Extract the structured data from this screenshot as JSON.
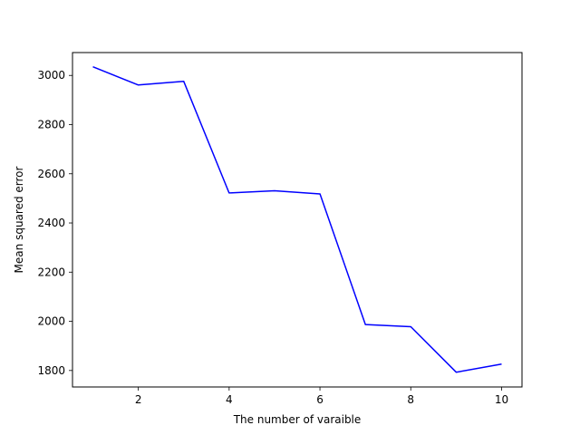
{
  "chart_data": {
    "type": "line",
    "title": "",
    "xlabel": "The number of varaible",
    "ylabel": "Mean squared error",
    "xlim": [
      0.55,
      10.45
    ],
    "ylim": [
      1733,
      3093
    ],
    "xticks": [
      2,
      4,
      6,
      8,
      10
    ],
    "yticks": [
      1800,
      2000,
      2200,
      2400,
      2600,
      2800,
      3000
    ],
    "grid": false,
    "series": [
      {
        "color": "#0000ff",
        "x": [
          1,
          2,
          3,
          4,
          5,
          6,
          7,
          8,
          9,
          10
        ],
        "values": [
          3035,
          2961,
          2976,
          2522,
          2531,
          2518,
          1987,
          1978,
          1793,
          1826
        ]
      }
    ]
  }
}
